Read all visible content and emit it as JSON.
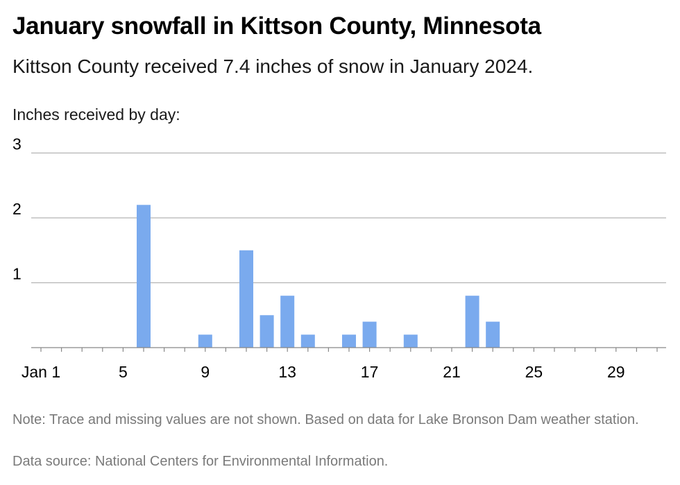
{
  "colors": {
    "bar": "#7aaaee",
    "grid": "#b3b3b3",
    "axis": "#888888",
    "tick_text": "#000000",
    "note_text": "#7a7a7a"
  },
  "chart_data": {
    "type": "bar",
    "title": "January snowfall in Kittson County, Minnesota",
    "subtitle": "Kittson County received 7.4 inches of snow in January 2024.",
    "ylabel": "Inches received by day:",
    "xlabel": "",
    "x": [
      6,
      9,
      11,
      12,
      13,
      14,
      16,
      17,
      19,
      22,
      23
    ],
    "values": [
      2.2,
      0.2,
      1.5,
      0.5,
      0.8,
      0.2,
      0.2,
      0.4,
      0.2,
      0.8,
      0.4
    ],
    "xlim": [
      1,
      31
    ],
    "ylim": [
      0,
      3
    ],
    "yticks": [
      1,
      2,
      3
    ],
    "xticks": [
      1,
      5,
      9,
      13,
      17,
      21,
      25,
      29
    ],
    "xtick_labels": [
      "Jan 1",
      "5",
      "9",
      "13",
      "17",
      "21",
      "25",
      "29"
    ],
    "grid": true,
    "legend": "none"
  },
  "note": "Note: Trace and missing values are not shown. Based on data for Lake Bronson Dam weather station.",
  "source": "Data source: National Centers for Environmental Information."
}
